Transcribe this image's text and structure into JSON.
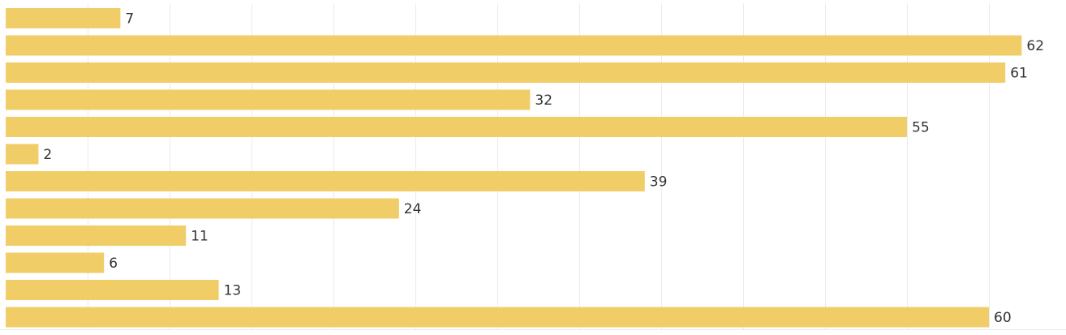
{
  "chart_data": {
    "type": "bar",
    "orientation": "horizontal",
    "values": [
      7,
      62,
      61,
      32,
      55,
      2,
      39,
      24,
      11,
      6,
      13,
      60
    ],
    "data_labels": [
      "7",
      "62",
      "61",
      "32",
      "55",
      "2",
      "39",
      "24",
      "11",
      "6",
      "13",
      "60"
    ],
    "xlim": [
      0,
      63
    ],
    "x_grid_step": 5,
    "grid": true,
    "bar_color": "#f0cd67",
    "grid_color": "#ebebeb",
    "label_color": "#333333"
  }
}
